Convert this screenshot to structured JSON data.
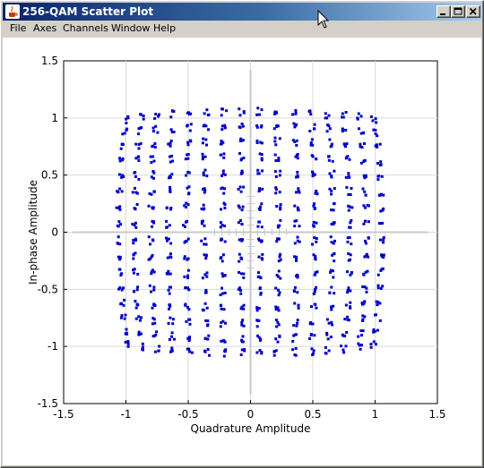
{
  "window": {
    "title": "256-QAM Scatter Plot",
    "controls": [
      "minimize",
      "maximize",
      "close"
    ]
  },
  "menubar": {
    "items": [
      {
        "label": "File"
      },
      {
        "label": "Axes"
      },
      {
        "label": "Channels"
      },
      {
        "label": "Window"
      },
      {
        "label": "Help"
      }
    ]
  },
  "colors": {
    "title_bar": "#0a246a",
    "points": "#0000c8",
    "grid": "#d9d9d9",
    "window_face": "#d4d0c8"
  },
  "chart_data": {
    "type": "scatter",
    "title": "",
    "xlabel": "Quadrature Amplitude",
    "ylabel": "In-phase Amplitude",
    "xlim": [
      -1.5,
      1.5
    ],
    "ylim": [
      -1.5,
      1.5
    ],
    "xticks": [
      "-1.5",
      "-1",
      "-0.5",
      "0",
      "0.5",
      "1",
      "1.5"
    ],
    "yticks": [
      "1.5",
      "1",
      "0.5",
      "0",
      "-0.5",
      "-1",
      "-1.5"
    ],
    "grid": true,
    "series": [
      {
        "constellation": "256-QAM",
        "levels": [
          -1.125,
          -0.975,
          -0.825,
          -0.675,
          -0.525,
          -0.375,
          -0.225,
          -0.075,
          0.075,
          0.225,
          0.375,
          0.525,
          0.675,
          0.825,
          0.975,
          1.125
        ],
        "compression": 0.12,
        "points_per_symbol": 4,
        "spread": 0.022
      }
    ]
  }
}
